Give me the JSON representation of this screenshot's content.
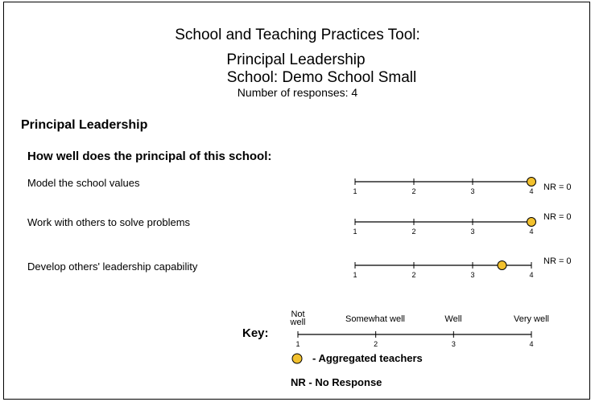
{
  "header": {
    "tool_title": "School and Teaching Practices Tool:",
    "domain": "Principal Leadership",
    "school": "School: Demo School Small",
    "responses": "Number of responses: 4"
  },
  "section_title": "Principal Leadership",
  "question": "How well does the principal of this school:",
  "scale_ticks": [
    "1",
    "2",
    "3",
    "4"
  ],
  "scale_range": [
    1,
    4
  ],
  "items": [
    {
      "label": "Model the school values",
      "value": 4.0,
      "nr": "NR = 0"
    },
    {
      "label": "Work with others to solve problems",
      "value": 4.0,
      "nr": "NR = 0"
    },
    {
      "label": "Develop others' leadership capability",
      "value": 3.5,
      "nr": "NR = 0"
    }
  ],
  "key": {
    "label": "Key:",
    "anchors": [
      "Not\nwell",
      "Somewhat well",
      "Well",
      "Very well"
    ],
    "ticks": [
      "1",
      "2",
      "3",
      "4"
    ],
    "marker_label": "- Aggregated teachers",
    "nr_note": "NR - No Response"
  },
  "colors": {
    "marker_fill": "#f2c12e",
    "marker_stroke": "#000000",
    "line": "#000000"
  }
}
